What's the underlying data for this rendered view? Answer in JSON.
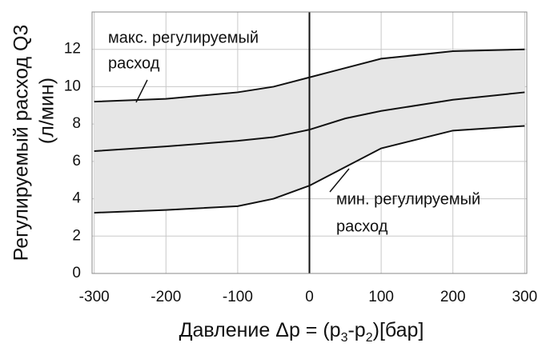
{
  "chart_data": {
    "type": "band-line",
    "x": [
      -300,
      -200,
      -100,
      -50,
      0,
      50,
      100,
      200,
      300
    ],
    "band_color": "#e6e6e6",
    "series": [
      {
        "name": "макс. регулируемый расход",
        "color": "#111111",
        "values": [
          9.2,
          9.35,
          9.7,
          10.0,
          10.5,
          11.0,
          11.5,
          11.9,
          12.0
        ]
      },
      {
        "color": "#111111",
        "values": [
          6.55,
          6.8,
          7.1,
          7.3,
          7.7,
          8.3,
          8.7,
          9.3,
          9.7
        ]
      },
      {
        "name": "мин. регулируемый расход",
        "color": "#111111",
        "values": [
          3.25,
          3.4,
          3.6,
          4.0,
          4.7,
          5.7,
          6.7,
          7.65,
          7.9
        ]
      }
    ],
    "annotations": [
      "макс. регулируемый",
      "расход",
      "мин. регулируемый",
      "расход"
    ],
    "y_label": [
      "Регулируемый расход Q3",
      "(л/мин)"
    ],
    "x_label": [
      "Давление Δp = (p",
      "3",
      "-p",
      "2",
      ")[бар]"
    ],
    "xlim": [
      -303,
      303
    ],
    "xticks": [
      -300,
      -200,
      -100,
      0,
      100,
      200,
      300
    ],
    "ylim": [
      0,
      14
    ],
    "yticks": [
      0,
      2,
      4,
      6,
      8,
      10,
      12
    ],
    "grid": true,
    "vline": 0
  }
}
